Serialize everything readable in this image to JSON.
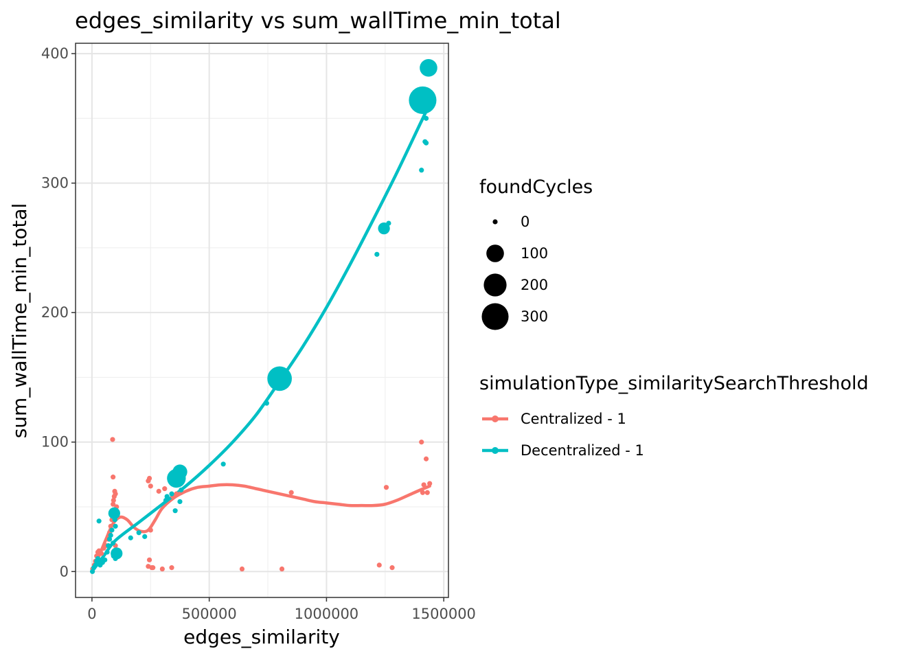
{
  "chart_data": {
    "type": "scatter",
    "title": "edges_similarity  vs  sum_wallTime_min_total",
    "xlabel": "edges_similarity",
    "ylabel": "sum_wallTime_min_total",
    "xlim": [
      -70000,
      1520000
    ],
    "ylim": [
      -20,
      408
    ],
    "x_ticks": [
      0,
      500000,
      1000000,
      1500000
    ],
    "x_tick_labels": [
      "0",
      "500000",
      "1000000",
      "1500000"
    ],
    "y_ticks": [
      0,
      100,
      200,
      300,
      400
    ],
    "y_tick_labels": [
      "0",
      "100",
      "200",
      "300",
      "400"
    ],
    "grid": true,
    "size_legend": {
      "title": "foundCycles",
      "values": [
        0,
        100,
        200,
        300
      ],
      "labels": [
        "0",
        "100",
        "200",
        "300"
      ]
    },
    "color_legend": {
      "title": "simulationType_similaritySearchThreshold"
    },
    "series": [
      {
        "name": "Centralized - 1",
        "color": "#F8766D",
        "points": [
          [
            3000,
            2,
            0
          ],
          [
            10000,
            5,
            0
          ],
          [
            15000,
            8,
            0
          ],
          [
            20000,
            12,
            0
          ],
          [
            25000,
            15,
            0
          ],
          [
            30000,
            16,
            0
          ],
          [
            40000,
            14,
            0
          ],
          [
            50000,
            18,
            0
          ],
          [
            60000,
            20,
            0
          ],
          [
            70000,
            25,
            0
          ],
          [
            75000,
            30,
            0
          ],
          [
            80000,
            35,
            0
          ],
          [
            85000,
            40,
            0
          ],
          [
            88000,
            45,
            0
          ],
          [
            90000,
            52,
            0
          ],
          [
            92000,
            55,
            0
          ],
          [
            95000,
            58,
            0
          ],
          [
            97000,
            62,
            0
          ],
          [
            100000,
            60,
            0
          ],
          [
            105000,
            50,
            0
          ],
          [
            90000,
            73,
            0
          ],
          [
            88000,
            102,
            0
          ],
          [
            95000,
            42,
            0
          ],
          [
            100000,
            20,
            0
          ],
          [
            240000,
            70,
            0
          ],
          [
            245000,
            72,
            0
          ],
          [
            250000,
            66,
            0
          ],
          [
            240000,
            4,
            0
          ],
          [
            245000,
            9,
            0
          ],
          [
            255000,
            3,
            0
          ],
          [
            260000,
            3,
            0
          ],
          [
            250000,
            32,
            0
          ],
          [
            285000,
            62,
            0
          ],
          [
            300000,
            2,
            0
          ],
          [
            310000,
            64,
            0
          ],
          [
            340000,
            3,
            0
          ],
          [
            345000,
            58,
            0
          ],
          [
            360000,
            60,
            0
          ],
          [
            380000,
            61,
            0
          ],
          [
            640000,
            2,
            0
          ],
          [
            810000,
            2,
            0
          ],
          [
            850000,
            61,
            0
          ],
          [
            1225000,
            5,
            0
          ],
          [
            1255000,
            65,
            0
          ],
          [
            1280000,
            3,
            0
          ],
          [
            1405000,
            100,
            0
          ],
          [
            1410000,
            61,
            0
          ],
          [
            1415000,
            67,
            0
          ],
          [
            1425000,
            87,
            0
          ],
          [
            1430000,
            61,
            0
          ],
          [
            1440000,
            68,
            0
          ]
        ],
        "trend": [
          [
            0,
            0
          ],
          [
            30000,
            12
          ],
          [
            60000,
            25
          ],
          [
            90000,
            37
          ],
          [
            120000,
            42
          ],
          [
            150000,
            40
          ],
          [
            180000,
            34
          ],
          [
            210000,
            31
          ],
          [
            240000,
            32
          ],
          [
            270000,
            40
          ],
          [
            300000,
            49
          ],
          [
            350000,
            57
          ],
          [
            400000,
            62
          ],
          [
            450000,
            65
          ],
          [
            500000,
            66
          ],
          [
            550000,
            67
          ],
          [
            600000,
            67
          ],
          [
            650000,
            66
          ],
          [
            700000,
            64
          ],
          [
            750000,
            62
          ],
          [
            800000,
            60
          ],
          [
            850000,
            58
          ],
          [
            900000,
            56
          ],
          [
            950000,
            54
          ],
          [
            1000000,
            53
          ],
          [
            1050000,
            52
          ],
          [
            1100000,
            51
          ],
          [
            1150000,
            51
          ],
          [
            1200000,
            51
          ],
          [
            1250000,
            52
          ],
          [
            1300000,
            55
          ],
          [
            1350000,
            59
          ],
          [
            1400000,
            63
          ],
          [
            1440000,
            66
          ]
        ]
      },
      {
        "name": "Decentralized - 1",
        "color": "#00BFC4",
        "points": [
          [
            2000,
            0,
            0
          ],
          [
            8000,
            3,
            0
          ],
          [
            15000,
            5,
            0
          ],
          [
            20000,
            8,
            0
          ],
          [
            25000,
            10,
            0
          ],
          [
            30000,
            39,
            0
          ],
          [
            35000,
            5,
            0
          ],
          [
            45000,
            7,
            0
          ],
          [
            55000,
            9,
            0
          ],
          [
            65000,
            15,
            0
          ],
          [
            70000,
            20,
            0
          ],
          [
            75000,
            25,
            0
          ],
          [
            80000,
            28,
            0
          ],
          [
            85000,
            32,
            0
          ],
          [
            90000,
            22,
            0
          ],
          [
            92000,
            12,
            0
          ],
          [
            95000,
            45,
            30
          ],
          [
            98000,
            40,
            0
          ],
          [
            100000,
            35,
            0
          ],
          [
            105000,
            14,
            30
          ],
          [
            100000,
            10,
            0
          ],
          [
            165000,
            26,
            0
          ],
          [
            200000,
            30,
            0
          ],
          [
            225000,
            27,
            0
          ],
          [
            315000,
            55,
            0
          ],
          [
            320000,
            58,
            0
          ],
          [
            340000,
            60,
            0
          ],
          [
            355000,
            47,
            0
          ],
          [
            360000,
            72,
            120
          ],
          [
            365000,
            68,
            0
          ],
          [
            370000,
            75,
            0
          ],
          [
            375000,
            77,
            60
          ],
          [
            380000,
            63,
            0
          ],
          [
            375000,
            54,
            0
          ],
          [
            560000,
            83,
            0
          ],
          [
            745000,
            130,
            0
          ],
          [
            800000,
            149,
            240
          ],
          [
            1215000,
            245,
            0
          ],
          [
            1245000,
            265,
            30
          ],
          [
            1265000,
            269,
            0
          ],
          [
            1405000,
            310,
            0
          ],
          [
            1410000,
            364,
            320
          ],
          [
            1420000,
            332,
            0
          ],
          [
            1425000,
            331,
            0
          ],
          [
            1425000,
            350,
            0
          ],
          [
            1435000,
            389,
            100
          ],
          [
            1445000,
            360,
            0
          ]
        ],
        "trend": [
          [
            0,
            0
          ],
          [
            50000,
            12
          ],
          [
            100000,
            24
          ],
          [
            200000,
            38
          ],
          [
            300000,
            52
          ],
          [
            400000,
            66
          ],
          [
            500000,
            82
          ],
          [
            600000,
            100
          ],
          [
            700000,
            121
          ],
          [
            800000,
            147
          ],
          [
            900000,
            174
          ],
          [
            1000000,
            204
          ],
          [
            1100000,
            237
          ],
          [
            1200000,
            272
          ],
          [
            1300000,
            308
          ],
          [
            1400000,
            346
          ],
          [
            1440000,
            361
          ]
        ]
      }
    ]
  }
}
